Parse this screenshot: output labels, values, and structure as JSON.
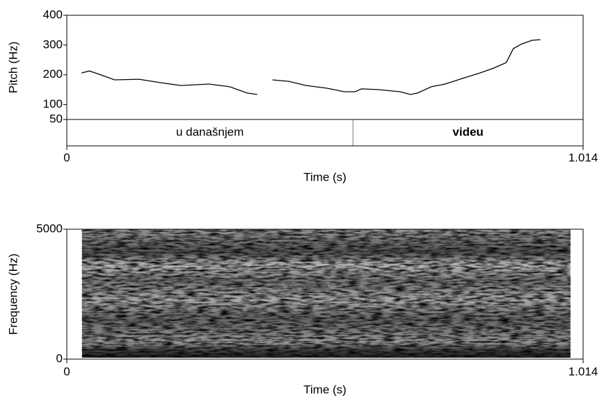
{
  "chart_data": [
    {
      "type": "line",
      "ylabel": "Pitch (Hz)",
      "xlabel": "Time (s)",
      "xlim": [
        0,
        1.014
      ],
      "xticks": [
        0,
        1.014
      ],
      "ylim": [
        50,
        400
      ],
      "yticks": [
        50,
        100,
        200,
        300,
        400
      ],
      "color": "#000000",
      "x": [
        0.029,
        0.044,
        0.06,
        0.094,
        0.142,
        0.183,
        0.224,
        0.279,
        0.32,
        0.354,
        0.374,
        0.39,
        0.404,
        0.436,
        0.47,
        0.511,
        0.545,
        0.566,
        0.579,
        0.614,
        0.655,
        0.675,
        0.689,
        0.716,
        0.743,
        0.777,
        0.811,
        0.839,
        0.863,
        0.877,
        0.894,
        0.914,
        0.93
      ],
      "values": [
        206,
        213,
        204,
        183,
        185,
        174,
        164,
        169,
        160,
        139,
        134,
        null,
        183,
        178,
        164,
        155,
        143,
        143,
        153,
        150,
        143,
        134,
        139,
        160,
        169,
        188,
        206,
        223,
        241,
        288,
        304,
        316,
        318
      ],
      "tier": {
        "boundaries": [
          0.562
        ],
        "labels": [
          "u današnjem",
          "videu"
        ],
        "bold": [
          false,
          true
        ]
      }
    },
    {
      "type": "spectrogram",
      "ylabel": "Frequency (Hz)",
      "xlabel": "Time (s)",
      "xlim": [
        0,
        1.014
      ],
      "xticks": [
        0,
        1.014
      ],
      "ylim": [
        0,
        5000
      ],
      "yticks": [
        0,
        5000
      ],
      "time_span": [
        0.03,
        0.989
      ]
    }
  ]
}
